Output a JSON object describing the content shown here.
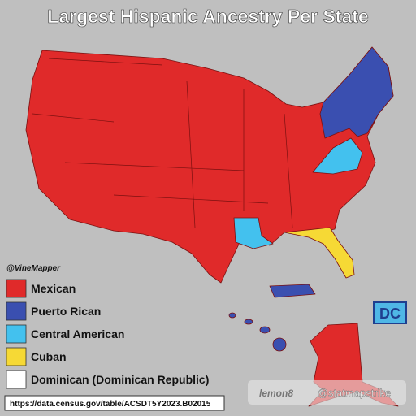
{
  "title": "Largest Hispanic Ancestry Per State",
  "credit": "@VineMapper",
  "legend": [
    {
      "label": "Mexican",
      "color": "#e02a2a"
    },
    {
      "label": "Puerto Rican",
      "color": "#3a4fb0"
    },
    {
      "label": "Central American",
      "color": "#43c1ee"
    },
    {
      "label": "Cuban",
      "color": "#f6d935"
    },
    {
      "label": "Dominican (Dominican Republic)",
      "color": "#ffffff"
    }
  ],
  "dc_label": "DC",
  "watermark": "lemon8",
  "handle": "@statmapstrike",
  "source": "https://data.census.gov/table/ACSDT5Y2023.B02015"
}
